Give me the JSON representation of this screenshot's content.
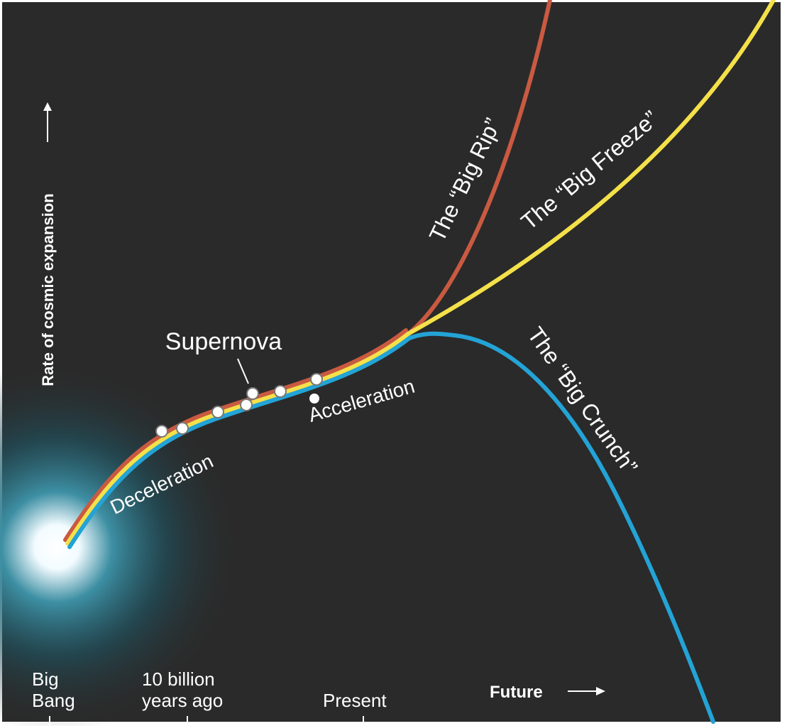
{
  "axis": {
    "y_label": "Rate of cosmic expansion"
  },
  "annotations": {
    "supernova": "Supernova",
    "deceleration": "Deceleration",
    "acceleration": "Acceleration"
  },
  "scenarios": [
    {
      "label": "The “Big Rip”"
    },
    {
      "label": "The “Big Freeze”"
    },
    {
      "label": "The “Big Crunch”"
    }
  ],
  "timeline": [
    {
      "lines": [
        "Big",
        "Bang"
      ]
    },
    {
      "lines": [
        "10 billion",
        "years ago"
      ]
    },
    {
      "lines": [
        "Present"
      ]
    },
    {
      "lines": [
        "Future"
      ]
    }
  ]
}
